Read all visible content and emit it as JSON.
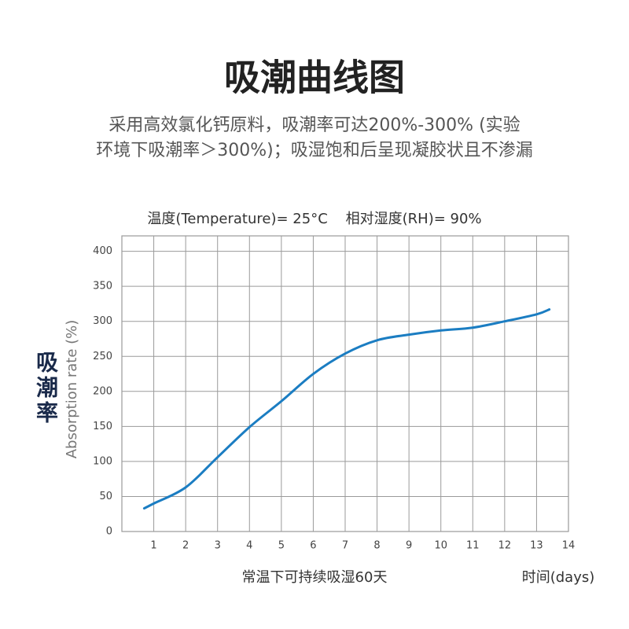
{
  "chart_data": {
    "type": "line",
    "title": "吸潮曲线图",
    "subtitle": [
      "采用高效氯化钙原料，吸潮率可达200%-300% (实验",
      "环境下吸潮率＞300%)；吸湿饱和后呈现凝胶状且不渗漏"
    ],
    "annotation": "温度(Temperature)= 25°C    相对湿度(RH)= 90%",
    "ylabel": "Absorption rate (%)",
    "ylabel_cn": "吸潮率",
    "caption": "常温下可持续吸湿60天",
    "xlabel": "时间(days)",
    "x": [
      0.7,
      1,
      2,
      3,
      4,
      5,
      6,
      7,
      8,
      9,
      10,
      11,
      12,
      13,
      13.4
    ],
    "series": [
      {
        "name": "吸潮率",
        "color": "#1b7dc2",
        "values": [
          33,
          40,
          63,
          106,
          149,
          186,
          225,
          254,
          273,
          281,
          287,
          291,
          300,
          310,
          317
        ]
      }
    ],
    "xlim": [
      0,
      14
    ],
    "xticks": [
      1,
      2,
      3,
      4,
      5,
      6,
      7,
      8,
      9,
      10,
      11,
      12,
      13,
      14
    ],
    "ylim": [
      0,
      422
    ],
    "yticks": [
      0,
      50,
      100,
      150,
      200,
      250,
      300,
      350,
      400
    ],
    "grid": true
  }
}
